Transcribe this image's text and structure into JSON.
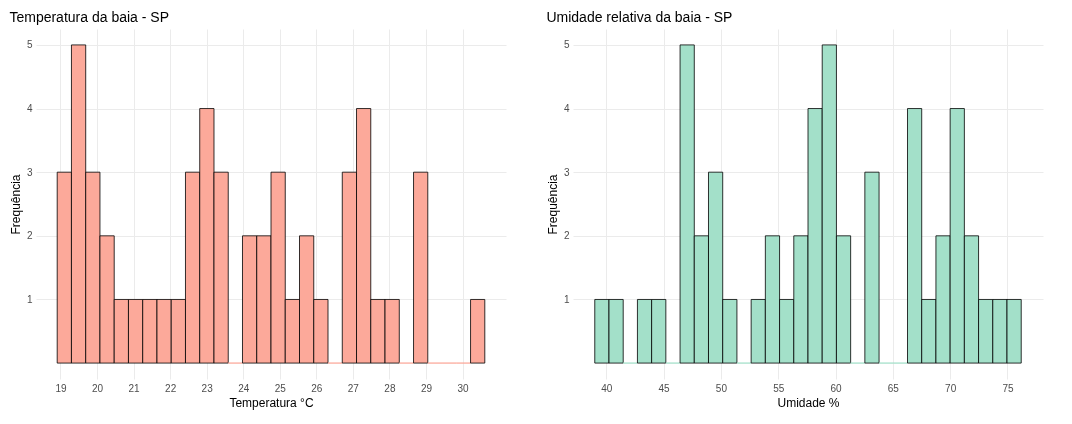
{
  "chart_data": [
    {
      "type": "histogram",
      "title": "Temperatura da baia - SP",
      "xlabel": "Temperatura °C",
      "ylabel": "Frequência",
      "color": "#fca99a",
      "bins": [
        18.91,
        19.3,
        19.69,
        20.08,
        20.47,
        20.86,
        21.25,
        21.64,
        22.03,
        22.42,
        22.81,
        23.2,
        23.59,
        23.98,
        24.37,
        24.76,
        25.15,
        25.54,
        25.93,
        26.32,
        26.71,
        27.1,
        27.49,
        27.88,
        28.27,
        28.66,
        29.05,
        29.44,
        29.83,
        30.22,
        30.61
      ],
      "values": [
        3,
        5,
        3,
        2,
        1,
        1,
        1,
        1,
        1,
        3,
        4,
        3,
        0,
        2,
        2,
        3,
        1,
        2,
        1,
        0,
        3,
        4,
        1,
        1,
        0,
        3,
        0,
        0,
        0,
        1
      ],
      "xlim": [
        18.33,
        31.19
      ],
      "xticks": [
        19,
        20,
        21,
        22,
        23,
        24,
        25,
        26,
        27,
        28,
        29,
        30
      ],
      "ylim": [
        -0.25,
        5.25
      ],
      "yticks": [
        1,
        2,
        3,
        4,
        5
      ],
      "grid": true
    },
    {
      "type": "histogram",
      "title": "Umidade relativa da baia - SP",
      "xlabel": "Umidade %",
      "ylabel": "Frequência",
      "color": "#a3e0c9",
      "bins": [
        39.0,
        40.24,
        41.48,
        42.72,
        43.96,
        45.2,
        46.44,
        47.68,
        48.92,
        50.16,
        51.4,
        52.64,
        53.88,
        55.12,
        56.36,
        57.6,
        58.84,
        60.08,
        61.32,
        62.56,
        63.8,
        65.04,
        66.28,
        67.52,
        68.76,
        70.0,
        71.24,
        72.48,
        73.72,
        74.96,
        76.2
      ],
      "values": [
        1,
        1,
        0,
        1,
        1,
        0,
        5,
        2,
        3,
        1,
        0,
        1,
        2,
        1,
        2,
        4,
        5,
        2,
        0,
        3,
        0,
        0,
        4,
        1,
        2,
        4,
        2,
        1,
        1,
        1
      ],
      "xlim": [
        37.1,
        78.1
      ],
      "xticks": [
        40,
        45,
        50,
        55,
        60,
        65,
        70,
        75
      ],
      "ylim": [
        -0.25,
        5.25
      ],
      "yticks": [
        1,
        2,
        3,
        4,
        5
      ],
      "grid": true
    }
  ]
}
